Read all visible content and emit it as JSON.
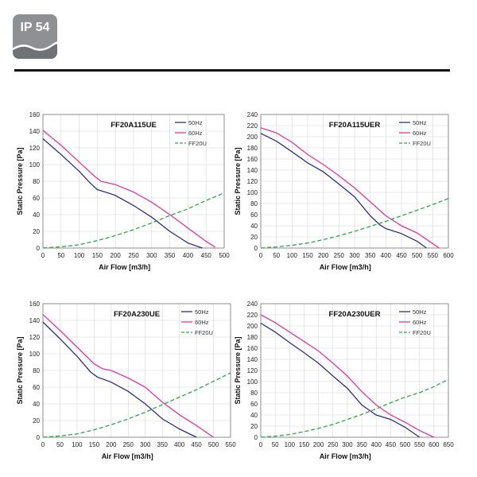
{
  "badge": {
    "label": "IP 54"
  },
  "chart_data": [
    {
      "type": "line",
      "title": "FF20A115UE",
      "xlabel": "Air Flow [m3/h]",
      "ylabel": "Static Pressure [Pa]",
      "xlim": [
        0,
        500
      ],
      "ylim": [
        0,
        160
      ],
      "xticks": [
        0,
        50,
        100,
        150,
        200,
        250,
        300,
        350,
        400,
        450,
        500
      ],
      "yticks": [
        0,
        20,
        40,
        60,
        80,
        100,
        120,
        140,
        160
      ],
      "grid": true,
      "legend_position": "top-right",
      "series": [
        {
          "name": "50Hz",
          "color": "#2b2f8c",
          "dash": false,
          "points": [
            [
              0,
              131
            ],
            [
              50,
              112
            ],
            [
              100,
              92
            ],
            [
              130,
              78
            ],
            [
              150,
              70
            ],
            [
              180,
              66
            ],
            [
              200,
              63
            ],
            [
              250,
              51
            ],
            [
              300,
              37
            ],
            [
              350,
              20
            ],
            [
              400,
              6
            ],
            [
              440,
              0
            ]
          ]
        },
        {
          "name": "60Hz",
          "color": "#e8359a",
          "dash": false,
          "points": [
            [
              0,
              141
            ],
            [
              50,
              123
            ],
            [
              100,
              103
            ],
            [
              140,
              87
            ],
            [
              160,
              80
            ],
            [
              200,
              76
            ],
            [
              250,
              67
            ],
            [
              300,
              55
            ],
            [
              350,
              40
            ],
            [
              400,
              24
            ],
            [
              450,
              8
            ],
            [
              475,
              1
            ]
          ]
        },
        {
          "name": "FF20U",
          "color": "#2aa84a",
          "dash": true,
          "points": [
            [
              0,
              0
            ],
            [
              50,
              1.5
            ],
            [
              100,
              4
            ],
            [
              150,
              9
            ],
            [
              200,
              15
            ],
            [
              250,
              22
            ],
            [
              300,
              30
            ],
            [
              350,
              39
            ],
            [
              400,
              47
            ],
            [
              450,
              57
            ],
            [
              500,
              66
            ]
          ]
        }
      ]
    },
    {
      "type": "line",
      "title": "FF20A115UER",
      "xlabel": "Air Flow [m3/h]",
      "ylabel": "Static Pressure [Pa]",
      "xlim": [
        0,
        600
      ],
      "ylim": [
        0,
        240
      ],
      "xticks": [
        0,
        50,
        100,
        150,
        200,
        250,
        300,
        350,
        400,
        450,
        500,
        550,
        600
      ],
      "yticks": [
        0,
        20,
        40,
        60,
        80,
        100,
        120,
        140,
        160,
        180,
        200,
        220,
        240
      ],
      "grid": true,
      "legend_position": "top-right",
      "series": [
        {
          "name": "50Hz",
          "color": "#2b2f8c",
          "dash": false,
          "points": [
            [
              0,
              206
            ],
            [
              50,
              192
            ],
            [
              100,
              173
            ],
            [
              150,
              153
            ],
            [
              200,
              137
            ],
            [
              250,
              115
            ],
            [
              300,
              92
            ],
            [
              350,
              58
            ],
            [
              380,
              42
            ],
            [
              400,
              35
            ],
            [
              450,
              26
            ],
            [
              500,
              12
            ],
            [
              530,
              0
            ]
          ]
        },
        {
          "name": "60Hz",
          "color": "#e8359a",
          "dash": false,
          "points": [
            [
              0,
              216
            ],
            [
              50,
              207
            ],
            [
              100,
              190
            ],
            [
              150,
              168
            ],
            [
              200,
              150
            ],
            [
              250,
              130
            ],
            [
              300,
              108
            ],
            [
              350,
              83
            ],
            [
              400,
              58
            ],
            [
              450,
              40
            ],
            [
              500,
              27
            ],
            [
              550,
              8
            ],
            [
              570,
              0
            ]
          ]
        },
        {
          "name": "FF20U",
          "color": "#2aa84a",
          "dash": true,
          "points": [
            [
              0,
              0
            ],
            [
              50,
              2
            ],
            [
              100,
              5
            ],
            [
              150,
              9
            ],
            [
              200,
              15
            ],
            [
              250,
              22
            ],
            [
              300,
              30
            ],
            [
              350,
              39
            ],
            [
              400,
              48
            ],
            [
              450,
              58
            ],
            [
              500,
              68
            ],
            [
              550,
              78
            ],
            [
              600,
              89
            ]
          ]
        }
      ]
    },
    {
      "type": "line",
      "title": "FF20A230UE",
      "xlabel": "Air Flow [m3/h]",
      "ylabel": "Static Pressure [Pa]",
      "xlim": [
        0,
        550
      ],
      "ylim": [
        0,
        160
      ],
      "xticks": [
        0,
        50,
        100,
        150,
        200,
        250,
        300,
        350,
        400,
        450,
        500,
        550
      ],
      "yticks": [
        0,
        20,
        40,
        60,
        80,
        100,
        120,
        140,
        160
      ],
      "grid": true,
      "legend_position": "top-right",
      "series": [
        {
          "name": "50Hz",
          "color": "#2b2f8c",
          "dash": false,
          "points": [
            [
              0,
              138
            ],
            [
              50,
              118
            ],
            [
              100,
              97
            ],
            [
              140,
              78
            ],
            [
              160,
              72
            ],
            [
              200,
              66
            ],
            [
              250,
              55
            ],
            [
              300,
              40
            ],
            [
              350,
              22
            ],
            [
              400,
              10
            ],
            [
              450,
              0
            ]
          ]
        },
        {
          "name": "60Hz",
          "color": "#e8359a",
          "dash": false,
          "points": [
            [
              0,
              147
            ],
            [
              50,
              128
            ],
            [
              100,
              108
            ],
            [
              150,
              88
            ],
            [
              175,
              82
            ],
            [
              200,
              80
            ],
            [
              250,
              71
            ],
            [
              300,
              60
            ],
            [
              350,
              42
            ],
            [
              400,
              27
            ],
            [
              450,
              14
            ],
            [
              500,
              0
            ]
          ]
        },
        {
          "name": "FF20U",
          "color": "#2aa84a",
          "dash": true,
          "points": [
            [
              0,
              0
            ],
            [
              50,
              1.5
            ],
            [
              100,
              4
            ],
            [
              150,
              9
            ],
            [
              200,
              15
            ],
            [
              250,
              22
            ],
            [
              300,
              30
            ],
            [
              350,
              39
            ],
            [
              400,
              48
            ],
            [
              450,
              57
            ],
            [
              500,
              67
            ],
            [
              550,
              77
            ]
          ]
        }
      ]
    },
    {
      "type": "line",
      "title": "FF20A230UER",
      "xlabel": "Air Flow [m3/h]",
      "ylabel": "Static Pressure [Pa]",
      "xlim": [
        0,
        650
      ],
      "ylim": [
        0,
        240
      ],
      "xticks": [
        0,
        50,
        100,
        150,
        200,
        250,
        300,
        350,
        400,
        450,
        500,
        550,
        600,
        650
      ],
      "yticks": [
        0,
        20,
        40,
        60,
        80,
        100,
        120,
        140,
        160,
        180,
        200,
        220,
        240
      ],
      "grid": true,
      "legend_position": "top-right",
      "series": [
        {
          "name": "50Hz",
          "color": "#2b2f8c",
          "dash": false,
          "points": [
            [
              0,
              205
            ],
            [
              50,
              189
            ],
            [
              100,
              170
            ],
            [
              150,
              152
            ],
            [
              200,
              133
            ],
            [
              250,
              110
            ],
            [
              300,
              88
            ],
            [
              350,
              58
            ],
            [
              400,
              40
            ],
            [
              450,
              32
            ],
            [
              500,
              18
            ],
            [
              550,
              0
            ]
          ]
        },
        {
          "name": "60Hz",
          "color": "#e8359a",
          "dash": false,
          "points": [
            [
              0,
              220
            ],
            [
              50,
              206
            ],
            [
              100,
              189
            ],
            [
              150,
              172
            ],
            [
              200,
              155
            ],
            [
              250,
              133
            ],
            [
              300,
              110
            ],
            [
              350,
              82
            ],
            [
              400,
              58
            ],
            [
              450,
              40
            ],
            [
              500,
              27
            ],
            [
              550,
              12
            ],
            [
              600,
              0
            ]
          ]
        },
        {
          "name": "FF20U",
          "color": "#2aa84a",
          "dash": true,
          "points": [
            [
              0,
              0
            ],
            [
              50,
              2
            ],
            [
              100,
              5
            ],
            [
              150,
              10
            ],
            [
              200,
              16
            ],
            [
              250,
              23
            ],
            [
              300,
              32
            ],
            [
              350,
              41
            ],
            [
              400,
              51
            ],
            [
              450,
              62
            ],
            [
              500,
              72
            ],
            [
              550,
              80
            ],
            [
              600,
              91
            ],
            [
              650,
              104
            ]
          ]
        }
      ]
    }
  ]
}
